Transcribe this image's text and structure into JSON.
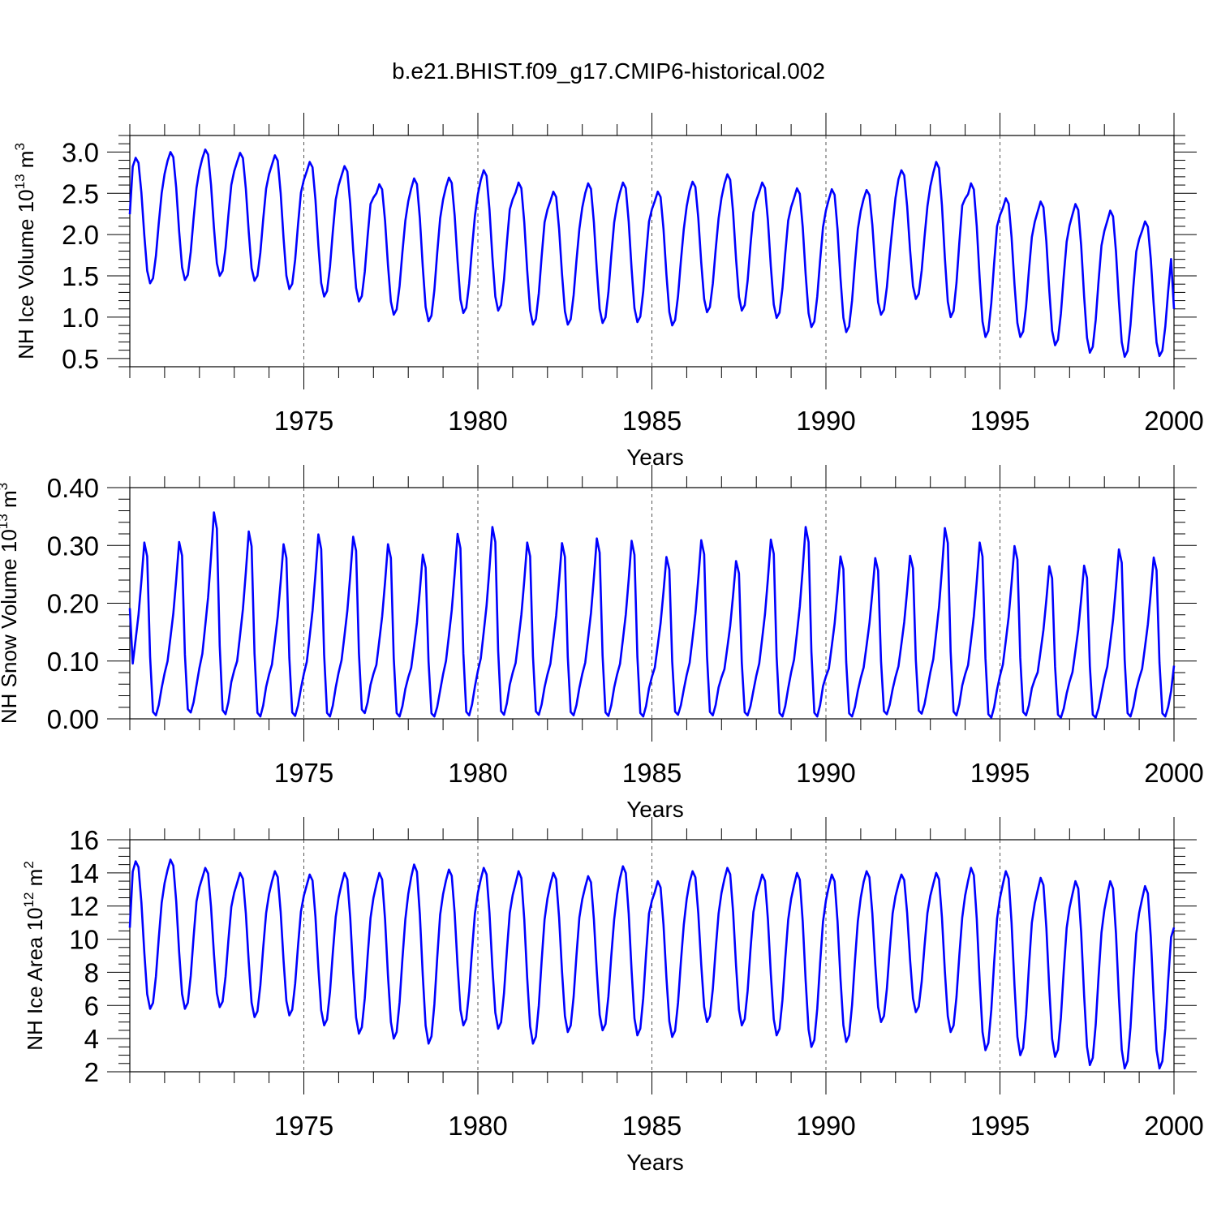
{
  "title": "b.e21.BHIST.f09_g17.CMIP6-historical.002",
  "line_color": "#0000ff",
  "chart_data": [
    {
      "type": "line",
      "id": "ice-volume",
      "ylabel_base": "NH Ice Volume 10",
      "ylabel_exp": "13",
      "ylabel_unit": " m",
      "ylabel_unit_exp": "3",
      "xlabel": "Years",
      "xlim": [
        1970.0,
        2000.0
      ],
      "ylim": [
        0.4,
        3.2
      ],
      "yticks": [
        0.5,
        1.0,
        1.5,
        2.0,
        2.5,
        3.0
      ],
      "ytick_labels": [
        "0.5",
        "1.0",
        "1.5",
        "2.0",
        "2.5",
        "3.0"
      ],
      "yminor_step": 0.1,
      "xticks": [
        1975,
        1980,
        1985,
        1990,
        1995,
        2000
      ],
      "xtick_labels": [
        "1975",
        "1980",
        "1985",
        "1990",
        "1995",
        "2000"
      ],
      "x_start": 1970.0,
      "monthly_shape": "ice",
      "annual_max": [
        2.93,
        3.0,
        3.03,
        2.99,
        2.96,
        2.88,
        2.83,
        2.61,
        2.68,
        2.69,
        2.78,
        2.63,
        2.52,
        2.62,
        2.63,
        2.52,
        2.64,
        2.73,
        2.63,
        2.56,
        2.55,
        2.54,
        2.78,
        2.88,
        2.62,
        2.44,
        2.4,
        2.37,
        2.29,
        2.16
      ],
      "annual_min": [
        1.41,
        1.45,
        1.5,
        1.44,
        1.34,
        1.25,
        1.19,
        1.03,
        0.95,
        1.05,
        1.08,
        0.91,
        0.91,
        0.93,
        0.94,
        0.9,
        1.06,
        1.08,
        0.99,
        0.88,
        0.82,
        1.03,
        1.22,
        1.0,
        0.76,
        0.76,
        0.66,
        0.57,
        0.52,
        0.53
      ],
      "end_value": 1.1
    },
    {
      "type": "line",
      "id": "snow-volume",
      "ylabel_base": "NH Snow Volume 10",
      "ylabel_exp": "13",
      "ylabel_unit": " m",
      "ylabel_unit_exp": "3",
      "xlabel": "Years",
      "xlim": [
        1970.0,
        2000.0
      ],
      "ylim": [
        0.0,
        0.4
      ],
      "yticks": [
        0.0,
        0.1,
        0.2,
        0.3,
        0.4
      ],
      "ytick_labels": [
        "0.00",
        "0.10",
        "0.20",
        "0.30",
        "0.40"
      ],
      "yminor_step": 0.02,
      "xticks": [
        1975,
        1980,
        1985,
        1990,
        1995,
        2000
      ],
      "xtick_labels": [
        "1975",
        "1980",
        "1985",
        "1990",
        "1995",
        "2000"
      ],
      "x_start": 1970.0,
      "monthly_shape": "snow",
      "annual_max": [
        0.305,
        0.306,
        0.357,
        0.324,
        0.302,
        0.319,
        0.315,
        0.302,
        0.284,
        0.32,
        0.332,
        0.305,
        0.304,
        0.312,
        0.308,
        0.28,
        0.309,
        0.273,
        0.31,
        0.332,
        0.281,
        0.278,
        0.282,
        0.33,
        0.305,
        0.299,
        0.264,
        0.265,
        0.293,
        0.279
      ],
      "annual_min": [
        0.006,
        0.011,
        0.008,
        0.004,
        0.005,
        0.004,
        0.01,
        0.004,
        0.004,
        0.006,
        0.007,
        0.007,
        0.006,
        0.005,
        0.004,
        0.007,
        0.006,
        0.006,
        0.004,
        0.004,
        0.004,
        0.008,
        0.009,
        0.006,
        0.002,
        0.006,
        0.002,
        0.002,
        0.004,
        0.004
      ],
      "end_value": 0.092
    },
    {
      "type": "line",
      "id": "ice-area",
      "ylabel_base": "NH Ice Area 10",
      "ylabel_exp": "12",
      "ylabel_unit": " m",
      "ylabel_unit_exp": "2",
      "xlabel": "Years",
      "xlim": [
        1970.0,
        2000.0
      ],
      "ylim": [
        2.0,
        16.0
      ],
      "yticks": [
        2,
        4,
        6,
        8,
        10,
        12,
        14,
        16
      ],
      "ytick_labels": [
        "2",
        "4",
        "6",
        "8",
        "10",
        "12",
        "14",
        "16"
      ],
      "yminor_step": 0.5,
      "xticks": [
        1975,
        1980,
        1985,
        1990,
        1995,
        2000
      ],
      "xtick_labels": [
        "1975",
        "1980",
        "1985",
        "1990",
        "1995",
        "2000"
      ],
      "x_start": 1970.0,
      "monthly_shape": "ice",
      "annual_max": [
        14.7,
        14.8,
        14.3,
        14.0,
        14.1,
        13.9,
        14.0,
        14.0,
        14.5,
        14.2,
        14.3,
        14.1,
        14.0,
        13.8,
        14.4,
        13.5,
        14.1,
        14.3,
        13.9,
        14.0,
        13.9,
        14.1,
        13.9,
        14.0,
        14.3,
        14.1,
        13.7,
        13.5,
        13.5,
        13.2
      ],
      "annual_min": [
        5.8,
        5.8,
        5.9,
        5.3,
        5.4,
        4.8,
        4.3,
        4.0,
        3.7,
        4.8,
        4.6,
        3.7,
        4.4,
        4.5,
        4.2,
        4.1,
        5.0,
        4.8,
        4.2,
        3.5,
        3.8,
        5.0,
        5.6,
        4.4,
        3.3,
        3.0,
        2.9,
        2.4,
        2.2,
        2.2
      ],
      "end_value": 10.7
    }
  ]
}
